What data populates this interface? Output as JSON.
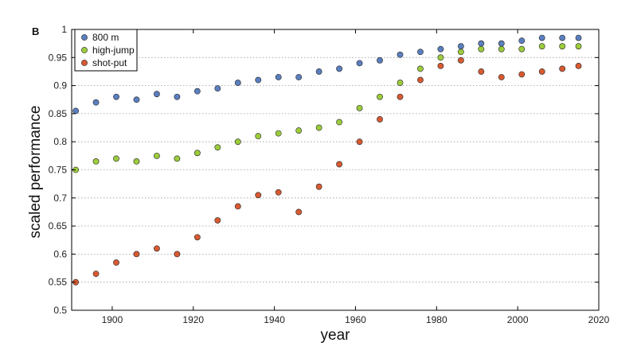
{
  "chart_data": {
    "type": "scatter",
    "panel_label": "B",
    "xlabel": "year",
    "ylabel": "scaled performance",
    "xlim": [
      1890,
      2020
    ],
    "ylim": [
      0.5,
      1.0
    ],
    "x_ticks": [
      1900,
      1920,
      1940,
      1960,
      1980,
      2000,
      2020
    ],
    "x_tick_labels": [
      "1900",
      "1920",
      "1940",
      "1960",
      "1980",
      "2000",
      "2020"
    ],
    "y_ticks": [
      0.5,
      0.55,
      0.6,
      0.65,
      0.7,
      0.75,
      0.8,
      0.85,
      0.9,
      0.95,
      1.0
    ],
    "y_tick_labels": [
      "0.5",
      "0.55",
      "0.6",
      "0.65",
      "0.7",
      "0.75",
      "0.8",
      "0.85",
      "0.9",
      "0.95",
      "1"
    ],
    "grid": "horizontal dotted",
    "legend_position": "top-left",
    "series": [
      {
        "name": "800 m",
        "color": "#5b7fbf",
        "x": [
          1891,
          1896,
          1901,
          1906,
          1911,
          1916,
          1921,
          1926,
          1931,
          1936,
          1941,
          1946,
          1951,
          1956,
          1961,
          1966,
          1971,
          1976,
          1981,
          1986,
          1991,
          1996,
          2001,
          2006,
          2011,
          2015
        ],
        "y": [
          0.855,
          0.87,
          0.88,
          0.875,
          0.885,
          0.88,
          0.89,
          0.895,
          0.905,
          0.91,
          0.915,
          0.915,
          0.925,
          0.93,
          0.94,
          0.945,
          0.955,
          0.96,
          0.965,
          0.97,
          0.975,
          0.975,
          0.98,
          0.985,
          0.985,
          0.985
        ]
      },
      {
        "name": "high-jump",
        "color": "#9ccc3c",
        "x": [
          1891,
          1896,
          1901,
          1906,
          1911,
          1916,
          1921,
          1926,
          1931,
          1936,
          1941,
          1946,
          1951,
          1956,
          1961,
          1966,
          1971,
          1976,
          1981,
          1986,
          1991,
          1996,
          2001,
          2006,
          2011,
          2015
        ],
        "y": [
          0.75,
          0.765,
          0.77,
          0.765,
          0.775,
          0.77,
          0.78,
          0.79,
          0.8,
          0.81,
          0.815,
          0.82,
          0.825,
          0.835,
          0.86,
          0.88,
          0.905,
          0.93,
          0.95,
          0.96,
          0.965,
          0.965,
          0.965,
          0.97,
          0.97,
          0.97
        ]
      },
      {
        "name": "shot-put",
        "color": "#d75a32",
        "x": [
          1891,
          1896,
          1901,
          1906,
          1911,
          1916,
          1921,
          1926,
          1931,
          1936,
          1941,
          1946,
          1951,
          1956,
          1961,
          1966,
          1971,
          1976,
          1981,
          1986,
          1991,
          1996,
          2001,
          2006,
          2011,
          2015
        ],
        "y": [
          0.55,
          0.565,
          0.585,
          0.6,
          0.61,
          0.6,
          0.63,
          0.66,
          0.685,
          0.705,
          0.71,
          0.675,
          0.72,
          0.76,
          0.8,
          0.84,
          0.88,
          0.91,
          0.935,
          0.945,
          0.925,
          0.915,
          0.92,
          0.925,
          0.93,
          0.935
        ]
      }
    ]
  }
}
